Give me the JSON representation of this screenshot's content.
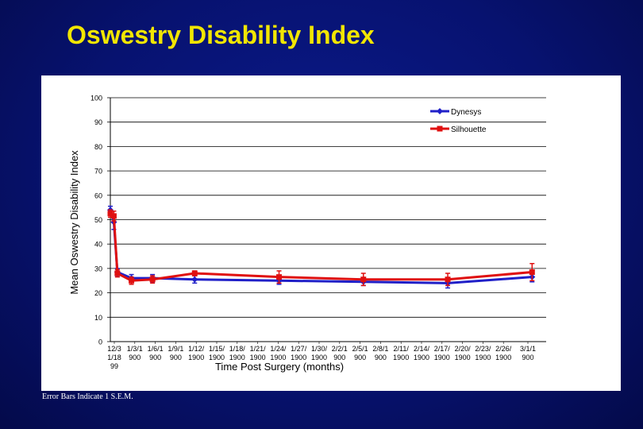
{
  "slide": {
    "title": "Oswestry Disability Index",
    "footnote": "Error Bars Indicate 1 S.E.M."
  },
  "colors": {
    "background": "#071270",
    "title": "#f2e600",
    "dynesys": "#2020c8",
    "silhouette": "#e01010"
  },
  "chart_data": {
    "type": "line",
    "title": "",
    "xlabel": "Time Post Surgery (months)",
    "ylabel": "Mean Oswestry Disability Index",
    "ylim": [
      0,
      100
    ],
    "yticks": [
      0,
      10,
      20,
      30,
      40,
      50,
      60,
      70,
      80,
      90,
      100
    ],
    "grid": true,
    "legend_position": "top-right",
    "x_tick_labels": [
      [
        "12/3",
        "1/18",
        "99"
      ],
      [
        "1/3/1",
        "900"
      ],
      [
        "1/6/1",
        "900"
      ],
      [
        "1/9/1",
        "900"
      ],
      [
        "1/12/",
        "1900"
      ],
      [
        "1/15/",
        "1900"
      ],
      [
        "1/18/",
        "1900"
      ],
      [
        "1/21/",
        "1900"
      ],
      [
        "1/24/",
        "1900"
      ],
      [
        "1/27/",
        "1900"
      ],
      [
        "1/30/",
        "1900"
      ],
      [
        "2/2/1",
        "900"
      ],
      [
        "2/5/1",
        "900"
      ],
      [
        "2/8/1",
        "900"
      ],
      [
        "2/11/",
        "1900"
      ],
      [
        "2/14/",
        "1900"
      ],
      [
        "2/17/",
        "1900"
      ],
      [
        "2/20/",
        "1900"
      ],
      [
        "2/23/",
        "1900"
      ],
      [
        "2/26/",
        "1900"
      ],
      [
        "3/1/1",
        "900"
      ]
    ],
    "x": [
      0,
      0.5,
      1,
      3,
      6,
      12,
      24,
      36,
      48,
      60
    ],
    "x_range": [
      0,
      62
    ],
    "series": [
      {
        "name": "Dynesys",
        "color": "#2020c8",
        "values": [
          54,
          49,
          28.5,
          26,
          26,
          25.5,
          25,
          24.5,
          24,
          26.5
        ],
        "errors": [
          1.5,
          3,
          1.5,
          1.5,
          1.5,
          1.5,
          1.5,
          1.5,
          2,
          2
        ]
      },
      {
        "name": "Silhouette",
        "color": "#e01010",
        "values": [
          52.5,
          51.5,
          28,
          25,
          25.5,
          28,
          26.5,
          25.5,
          25.5,
          28.5
        ],
        "errors": [
          1.5,
          2,
          1.5,
          1.5,
          1.5,
          1,
          2.5,
          2.5,
          2.5,
          3.5
        ]
      }
    ]
  }
}
